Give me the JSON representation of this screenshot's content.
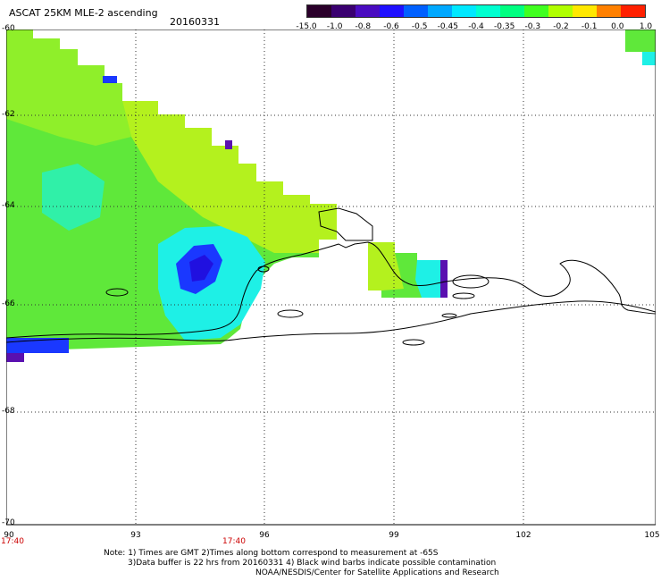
{
  "title": "ASCAT 25KM MLE-2 ascending",
  "date": "20160331",
  "colorbar": {
    "labels": [
      "-15.0",
      "-1.0",
      "-0.8",
      "-0.6",
      "-0.5",
      "-0.45",
      "-0.4",
      "-0.35",
      "-0.3",
      "-0.2",
      "-0.1",
      "0.0",
      "1.0"
    ],
    "colors": [
      "#2a002a",
      "#3a0070",
      "#4a0cc0",
      "#1f10ff",
      "#0060ff",
      "#00a8ff",
      "#00e8ff",
      "#00ffd0",
      "#00ff80",
      "#40ff20",
      "#b0ff00",
      "#ffe800",
      "#ff8000",
      "#ff2000"
    ]
  },
  "map": {
    "lat_labels": [
      "-60",
      "-62",
      "-64",
      "-66",
      "-68",
      "-70"
    ],
    "lon_labels": [
      "90",
      "93",
      "96",
      "99",
      "102",
      "105"
    ],
    "time_labels": [
      "17:40",
      "17:40"
    ],
    "colors": {
      "green": "#5fe83a",
      "light_green": "#8fef2a",
      "yellow_green": "#b4f11e",
      "cyan": "#1ef0e6",
      "cyan_green": "#30f0a8",
      "blue": "#1a38ff",
      "deep_blue": "#2010e0",
      "purple": "#5a10b0",
      "coast": "#000000",
      "grid": "#333333"
    }
  },
  "notes": [
    "Note: 1) Times are GMT 2)Times along bottom correspond to measurement at -65S",
    "3)Data buffer is 22 hrs from 20160331 4) Black wind barbs indicate possible contamination",
    "NOAA/NESDIS/Center for Satellite Applications and Research"
  ]
}
